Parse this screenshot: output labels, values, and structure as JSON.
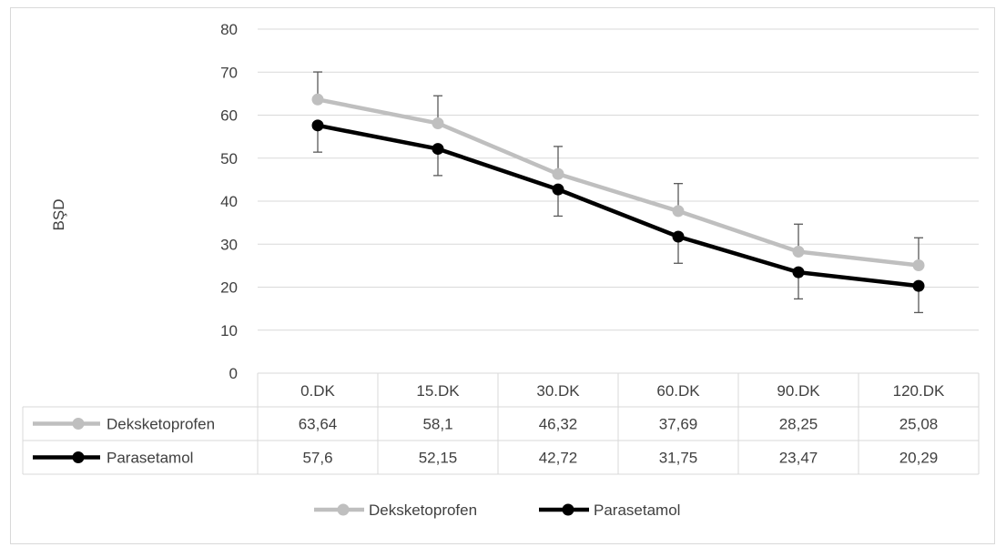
{
  "chart_data": {
    "type": "line",
    "title": "",
    "ylabel": "BŞD",
    "xlabel": "",
    "ylim": [
      0,
      80
    ],
    "yticks": [
      0,
      10,
      20,
      30,
      40,
      50,
      60,
      70,
      80
    ],
    "categories": [
      "0.DK",
      "15.DK",
      "30.DK",
      "60.DK",
      "90.DK",
      "120.DK"
    ],
    "grid": true,
    "legend": "bottom",
    "data_table": true,
    "series": [
      {
        "name": "Deksketoprofen",
        "color": "#bfbfbf",
        "values": [
          63.64,
          58.1,
          46.32,
          37.69,
          28.25,
          25.08
        ],
        "labels": [
          "63,64",
          "58,1",
          "46,32",
          "37,69",
          "28,25",
          "25,08"
        ],
        "error_plus": [
          6.4,
          6.4,
          6.4,
          6.4,
          6.4,
          6.4
        ]
      },
      {
        "name": "Parasetamol",
        "color": "#000000",
        "values": [
          57.6,
          52.15,
          42.72,
          31.75,
          23.47,
          20.29
        ],
        "labels": [
          "57,6",
          "52,15",
          "42,72",
          "31,75",
          "23,47",
          "20,29"
        ],
        "error_minus": [
          6.2,
          6.2,
          6.2,
          6.2,
          6.2,
          6.2
        ]
      }
    ]
  }
}
